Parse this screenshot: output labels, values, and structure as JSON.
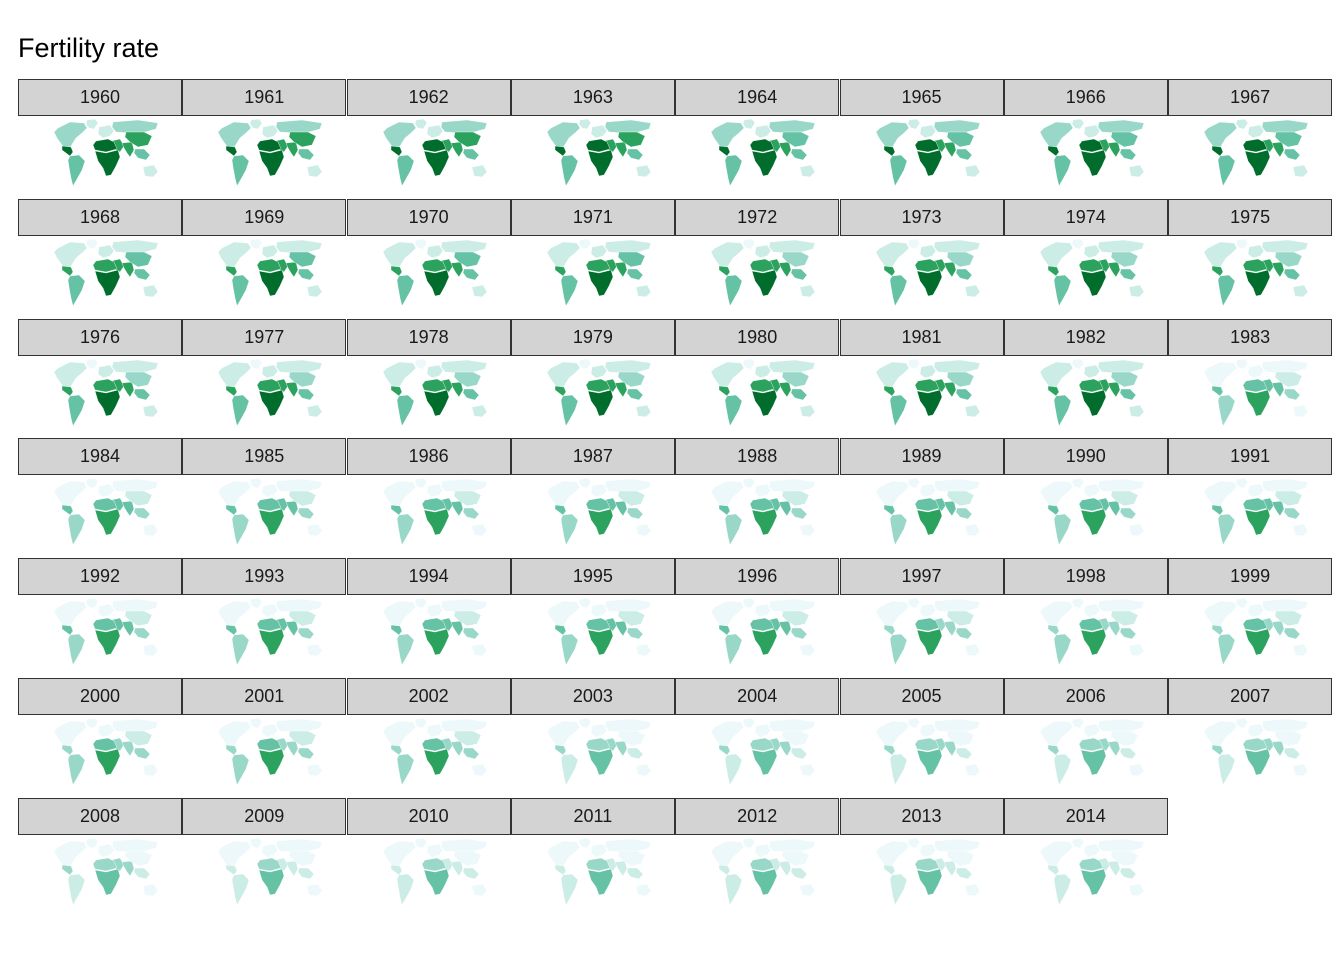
{
  "title": "Fertility rate",
  "palette": [
    "#edf8fb",
    "#ccece6",
    "#99d8c9",
    "#66c2a4",
    "#2ca25f",
    "#006d2c"
  ],
  "chart_data": {
    "type": "heatmap",
    "subtype": "small-multiple choropleth maps",
    "title": "Fertility rate",
    "facet_by": "year",
    "ncol": 8,
    "legend": "none",
    "grid": false,
    "years": [
      1960,
      1961,
      1962,
      1963,
      1964,
      1965,
      1966,
      1967,
      1968,
      1969,
      1970,
      1971,
      1972,
      1973,
      1974,
      1975,
      1976,
      1977,
      1978,
      1979,
      1980,
      1981,
      1982,
      1983,
      1984,
      1985,
      1986,
      1987,
      1988,
      1989,
      1990,
      1991,
      1992,
      1993,
      1994,
      1995,
      1996,
      1997,
      1998,
      1999,
      2000,
      2001,
      2002,
      2003,
      2004,
      2005,
      2006,
      2007,
      2008,
      2009,
      2010,
      2011,
      2012,
      2013,
      2014
    ],
    "regions": [
      "north_america",
      "central_america",
      "south_america",
      "greenland",
      "europe",
      "russia",
      "middle_east",
      "north_africa",
      "sub_saharan_africa",
      "south_asia",
      "east_asia",
      "southeast_asia",
      "oceania"
    ],
    "intensity_anchor_years": [
      1960,
      1975,
      1990,
      2014
    ],
    "intensity_by_region": {
      "north_america": [
        2,
        1,
        0,
        0
      ],
      "central_america": [
        5,
        4,
        3,
        1
      ],
      "south_america": [
        3,
        3,
        2,
        1
      ],
      "greenland": [
        1,
        0,
        0,
        0
      ],
      "europe": [
        1,
        1,
        0,
        0
      ],
      "russia": [
        2,
        1,
        0,
        0
      ],
      "middle_east": [
        4,
        4,
        3,
        1
      ],
      "north_africa": [
        5,
        4,
        3,
        2
      ],
      "sub_saharan_africa": [
        5,
        5,
        4,
        3
      ],
      "south_asia": [
        4,
        4,
        3,
        1
      ],
      "east_asia": [
        4,
        2,
        1,
        0
      ],
      "southeast_asia": [
        3,
        3,
        2,
        1
      ],
      "oceania": [
        1,
        1,
        0,
        0
      ]
    }
  }
}
